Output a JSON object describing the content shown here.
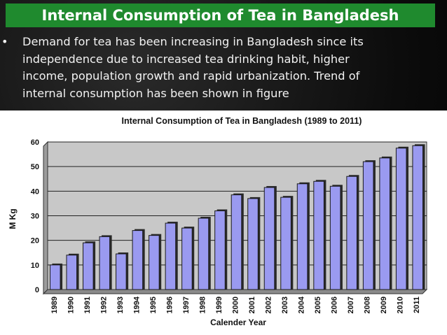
{
  "slide": {
    "title": "Internal Consumption of Tea in Bangladesh",
    "bullet_marker": "•",
    "bullet_lines": [
      "Demand for tea has been increasing in Bangladesh since its",
      "independence due to increased tea drinking habit, higher",
      "income, population growth and rapid urbanization. Trend of",
      "internal consumption has been shown in figure"
    ]
  },
  "colors": {
    "title_bar": "#1f8a2e",
    "plot_bg": "#c8c8c8",
    "bar_fill": "#9a9af0",
    "bar_edge": "#1a1a1a",
    "shadow": "#2a2a2a"
  },
  "chart_data": {
    "type": "bar",
    "title": "Internal Consumption of Tea in Bangladesh (1989 to 2011)",
    "xlabel": "Calender Year",
    "ylabel": "M Kg",
    "ylim": [
      0,
      60
    ],
    "yticks": [
      0,
      10,
      20,
      30,
      40,
      50,
      60
    ],
    "grid": true,
    "categories": [
      "1989",
      "1990",
      "1991",
      "1992",
      "1993",
      "1994",
      "1995",
      "1996",
      "1997",
      "1998",
      "1999",
      "2000",
      "2001",
      "2002",
      "2003",
      "2004",
      "2005",
      "2006",
      "2007",
      "2008",
      "2009",
      "2010",
      "2011"
    ],
    "values": [
      10,
      14,
      19,
      21.5,
      14.5,
      24,
      22,
      27,
      25,
      29,
      32,
      38.5,
      37,
      41.5,
      37.5,
      43,
      44,
      42,
      46,
      52,
      53.5,
      57.5,
      58.5
    ]
  }
}
